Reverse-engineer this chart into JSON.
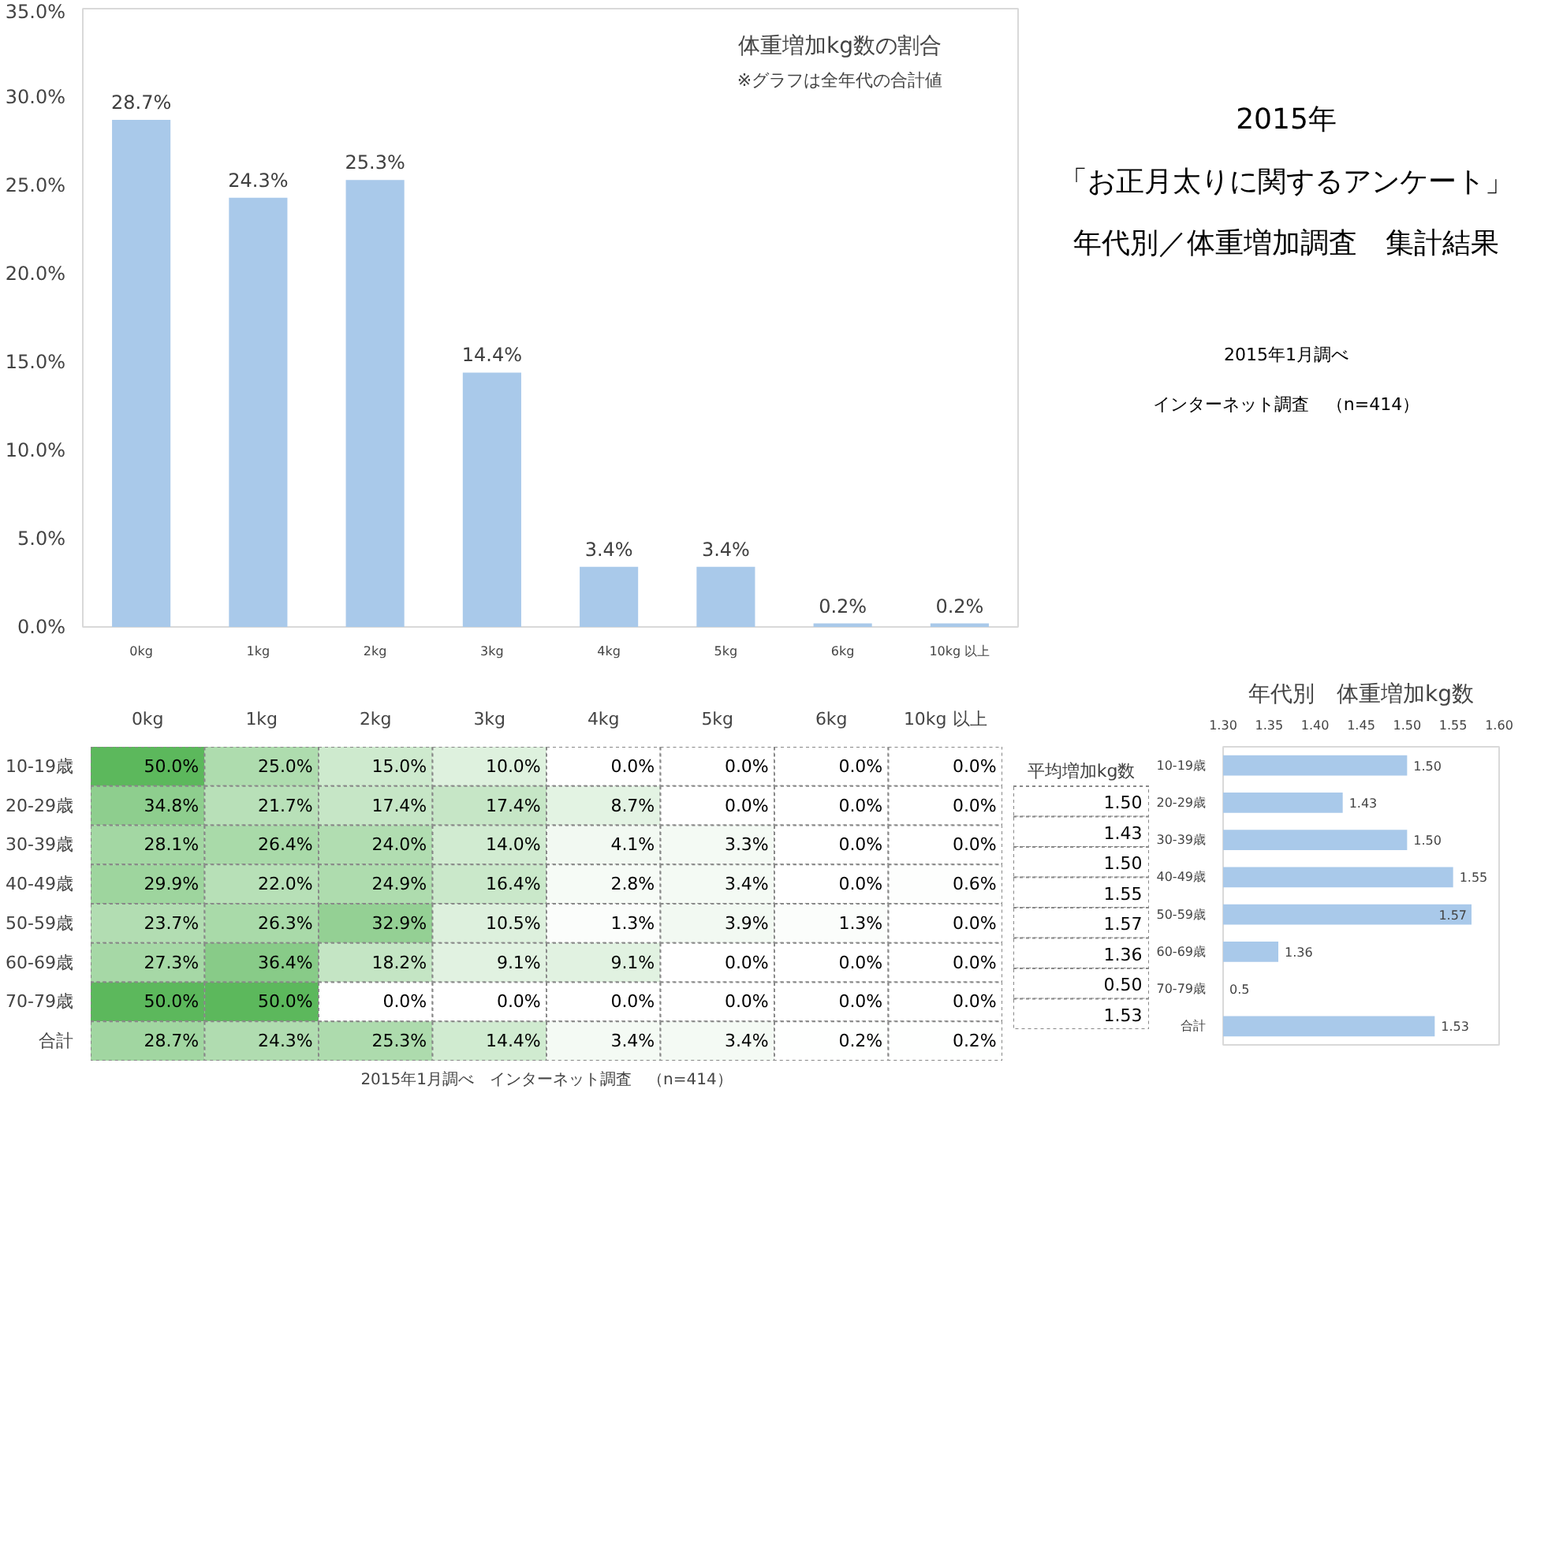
{
  "chart_data": [
    {
      "type": "bar",
      "title": "体重増加kg数の割合",
      "subtitle": "※グラフは全年代の合計値",
      "categories": [
        "0kg",
        "1kg",
        "2kg",
        "3kg",
        "4kg",
        "5kg",
        "6kg",
        "10kg 以上"
      ],
      "values": [
        28.7,
        24.3,
        25.3,
        14.4,
        3.4,
        3.4,
        0.2,
        0.2
      ],
      "value_labels": [
        "28.7%",
        "24.3%",
        "25.3%",
        "14.4%",
        "3.4%",
        "3.4%",
        "0.2%",
        "0.2%"
      ],
      "color": "#a9c9ea",
      "ylim": [
        0,
        35
      ],
      "yticks": [
        {
          "value": 0,
          "label": "0.0%"
        },
        {
          "value": 5,
          "label": "5.0%"
        },
        {
          "value": 10,
          "label": "10.0%"
        },
        {
          "value": 15,
          "label": "15.0%"
        },
        {
          "value": 20,
          "label": "20.0%"
        },
        {
          "value": 25,
          "label": "25.0%"
        },
        {
          "value": 30,
          "label": "30.0%"
        },
        {
          "value": 35,
          "label": "35.0%"
        }
      ]
    },
    {
      "type": "other",
      "title": "2015年",
      "annotations": [
        "「お正月太りに関するアンケート」",
        "年代別／体重増加調査　集計結果",
        "2015年1月調べ",
        "インターネット調査　（n=414）"
      ]
    },
    {
      "type": "heatmap",
      "color": "#5cb85c",
      "categories": [
        "0kg",
        "1kg",
        "2kg",
        "3kg",
        "4kg",
        "5kg",
        "6kg",
        "10kg 以上"
      ],
      "y_categories": [
        "10-19歳",
        "20-29歳",
        "30-39歳",
        "40-49歳",
        "50-59歳",
        "60-69歳",
        "70-79歳",
        "合計"
      ],
      "cells": [
        [
          50.0,
          25.0,
          15.0,
          10.0,
          0.0,
          0.0,
          0.0,
          0.0
        ],
        [
          34.8,
          21.7,
          17.4,
          17.4,
          8.7,
          0.0,
          0.0,
          0.0
        ],
        [
          28.1,
          26.4,
          24.0,
          14.0,
          4.1,
          3.3,
          0.0,
          0.0
        ],
        [
          29.9,
          22.0,
          24.9,
          16.4,
          2.8,
          3.4,
          0.0,
          0.6
        ],
        [
          23.7,
          26.3,
          32.9,
          10.5,
          1.3,
          3.9,
          1.3,
          0.0
        ],
        [
          27.3,
          36.4,
          18.2,
          9.1,
          9.1,
          0.0,
          0.0,
          0.0
        ],
        [
          50.0,
          50.0,
          0.0,
          0.0,
          0.0,
          0.0,
          0.0,
          0.0
        ],
        [
          28.7,
          24.3,
          25.3,
          14.4,
          3.4,
          3.4,
          0.2,
          0.2
        ]
      ],
      "cell_labels": [
        [
          "50.0%",
          "25.0%",
          "15.0%",
          "10.0%",
          "0.0%",
          "0.0%",
          "0.0%",
          "0.0%"
        ],
        [
          "34.8%",
          "21.7%",
          "17.4%",
          "17.4%",
          "8.7%",
          "0.0%",
          "0.0%",
          "0.0%"
        ],
        [
          "28.1%",
          "26.4%",
          "24.0%",
          "14.0%",
          "4.1%",
          "3.3%",
          "0.0%",
          "0.0%"
        ],
        [
          "29.9%",
          "22.0%",
          "24.9%",
          "16.4%",
          "2.8%",
          "3.4%",
          "0.0%",
          "0.6%"
        ],
        [
          "23.7%",
          "26.3%",
          "32.9%",
          "10.5%",
          "1.3%",
          "3.9%",
          "1.3%",
          "0.0%"
        ],
        [
          "27.3%",
          "36.4%",
          "18.2%",
          "9.1%",
          "9.1%",
          "0.0%",
          "0.0%",
          "0.0%"
        ],
        [
          "50.0%",
          "50.0%",
          "0.0%",
          "0.0%",
          "0.0%",
          "0.0%",
          "0.0%",
          "0.0%"
        ],
        [
          "28.7%",
          "24.3%",
          "25.3%",
          "14.4%",
          "3.4%",
          "3.4%",
          "0.2%",
          "0.2%"
        ]
      ],
      "annotations": [
        "2015年1月調べ　インターネット調査　（n=414）"
      ]
    },
    {
      "type": "other",
      "title": "平均増加kg数",
      "annotations": [
        "1.50",
        "1.43",
        "1.50",
        "1.55",
        "1.57",
        "1.36",
        "0.50",
        "1.53"
      ]
    },
    {
      "type": "bar",
      "orientation": "horizontal",
      "title": "年代別　体重増加kg数",
      "categories": [
        "10-19歳",
        "20-29歳",
        "30-39歳",
        "40-49歳",
        "50-59歳",
        "60-69歳",
        "70-79歳",
        "合計"
      ],
      "values": [
        1.5,
        1.43,
        1.5,
        1.55,
        1.57,
        1.36,
        null,
        1.53
      ],
      "value_labels": [
        "1.50",
        "1.43",
        "1.50",
        "1.55",
        "1.57",
        "1.36",
        "0.5",
        "1.53"
      ],
      "color": "#a9c9ea",
      "xlim": [
        1.3,
        1.6
      ],
      "xticks": [
        {
          "value": 1.3,
          "label": "1.30"
        },
        {
          "value": 1.35,
          "label": "1.35"
        },
        {
          "value": 1.4,
          "label": "1.40"
        },
        {
          "value": 1.45,
          "label": "1.45"
        },
        {
          "value": 1.5,
          "label": "1.50"
        },
        {
          "value": 1.55,
          "label": "1.55"
        },
        {
          "value": 1.6,
          "label": "1.60"
        }
      ]
    }
  ]
}
